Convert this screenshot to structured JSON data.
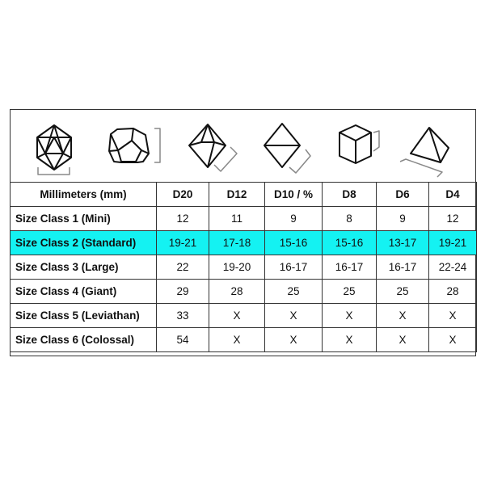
{
  "icons": [
    "d20-icon",
    "d12-icon",
    "d8-icon",
    "d10-icon",
    "d6-icon",
    "d4-icon"
  ],
  "highlight_color": "#14f2f2",
  "table": {
    "headers": [
      "Millimeters (mm)",
      "D20",
      "D12",
      "D10 / %",
      "D8",
      "D6",
      "D4"
    ],
    "rows": [
      {
        "label": "Size Class 1 (Mini)",
        "values": [
          "12",
          "11",
          "9",
          "8",
          "9",
          "12"
        ]
      },
      {
        "label": "Size Class 2 (Standard)",
        "values": [
          "19-21",
          "17-18",
          "15-16",
          "15-16",
          "13-17",
          "19-21"
        ],
        "highlighted": true
      },
      {
        "label": "Size Class 3 (Large)",
        "values": [
          "22",
          "19-20",
          "16-17",
          "16-17",
          "16-17",
          "22-24"
        ]
      },
      {
        "label": "Size Class 4 (Giant)",
        "values": [
          "29",
          "28",
          "25",
          "25",
          "25",
          "28"
        ]
      },
      {
        "label": "Size Class 5 (Leviathan)",
        "values": [
          "33",
          "X",
          "X",
          "X",
          "X",
          "X"
        ]
      },
      {
        "label": "Size Class 6 (Colossal)",
        "values": [
          "54",
          "X",
          "X",
          "X",
          "X",
          "X"
        ]
      }
    ]
  }
}
